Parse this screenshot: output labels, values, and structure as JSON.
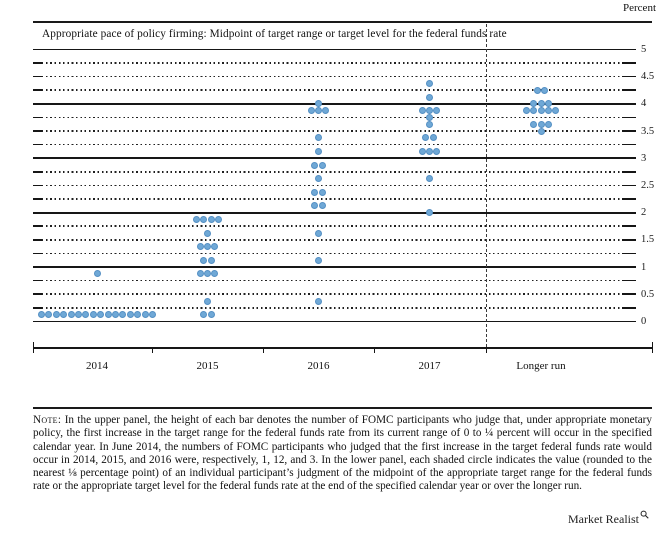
{
  "header": {
    "percent_label": "Percent",
    "title": "Appropriate pace of policy firming: Midpoint of target range or target level for the federal funds rate"
  },
  "chart_data": {
    "type": "scatter",
    "subtype": "fomc-dot-plot",
    "title": "Appropriate pace of policy firming: Midpoint of target range or target level for the federal funds rate",
    "ylabel": "Percent",
    "ylim": [
      0,
      5
    ],
    "grid": "solid lines at integers, dotted lines at quarter-point steps",
    "y_tick_labels": [
      "0",
      "0.5",
      "1",
      "1.5",
      "2",
      "2.5",
      "3",
      "3.5",
      "4",
      "4.5",
      "5"
    ],
    "categories": [
      "2014",
      "2015",
      "2016",
      "2017",
      "Longer run"
    ],
    "legend_position": "none",
    "dot_color": "#6FA8D6",
    "dot_border_color": "#5590C4",
    "series": [
      {
        "category": "2014",
        "dots": [
          {
            "value": 0.125,
            "count": 16
          },
          {
            "value": 0.875,
            "count": 1
          }
        ]
      },
      {
        "category": "2015",
        "dots": [
          {
            "value": 0.125,
            "count": 2
          },
          {
            "value": 0.375,
            "count": 1
          },
          {
            "value": 0.875,
            "count": 3
          },
          {
            "value": 1.125,
            "count": 2
          },
          {
            "value": 1.375,
            "count": 3
          },
          {
            "value": 1.625,
            "count": 1
          },
          {
            "value": 1.875,
            "count": 4
          }
        ]
      },
      {
        "category": "2016",
        "dots": [
          {
            "value": 0.375,
            "count": 1
          },
          {
            "value": 1.125,
            "count": 1
          },
          {
            "value": 1.625,
            "count": 1
          },
          {
            "value": 2.125,
            "count": 2
          },
          {
            "value": 2.375,
            "count": 2
          },
          {
            "value": 2.625,
            "count": 1
          },
          {
            "value": 2.875,
            "count": 2
          },
          {
            "value": 3.125,
            "count": 1
          },
          {
            "value": 3.375,
            "count": 1
          },
          {
            "value": 3.875,
            "count": 3
          },
          {
            "value": 4.0,
            "count": 1
          }
        ]
      },
      {
        "category": "2017",
        "dots": [
          {
            "value": 2.0,
            "count": 1
          },
          {
            "value": 2.625,
            "count": 1
          },
          {
            "value": 3.125,
            "count": 3
          },
          {
            "value": 3.375,
            "count": 2
          },
          {
            "value": 3.625,
            "count": 1
          },
          {
            "value": 3.75,
            "count": 1
          },
          {
            "value": 3.875,
            "count": 3
          },
          {
            "value": 4.125,
            "count": 1
          },
          {
            "value": 4.375,
            "count": 1
          }
        ]
      },
      {
        "category": "Longer run",
        "dots": [
          {
            "value": 3.5,
            "count": 1
          },
          {
            "value": 3.625,
            "count": 3
          },
          {
            "value": 3.875,
            "count": 5
          },
          {
            "value": 4.0,
            "count": 3
          },
          {
            "value": 4.25,
            "count": 2
          }
        ]
      }
    ]
  },
  "note": {
    "prefix": "Note:",
    "body": "In the upper panel, the height of each bar denotes the number of FOMC participants who judge that, under appropriate monetary policy, the first increase in the target range for the federal funds rate from its current range of 0 to ¼ percent will occur in the specified calendar year. In June 2014, the numbers of FOMC participants who judged that the first increase in the target federal funds rate would occur in 2014, 2015, and 2016 were, respectively, 1, 12, and 3. In the lower panel, each shaded circle indicates the value (rounded to the nearest ⅛ percentage point) of an individual participant’s judgment of the midpoint of the appropriate target range for the federal funds rate or the appropriate target level for the federal funds rate at the end of the specified calendar year or over the longer run."
  },
  "branding": {
    "name": "Market Realist",
    "icon": "magnifier-icon"
  }
}
